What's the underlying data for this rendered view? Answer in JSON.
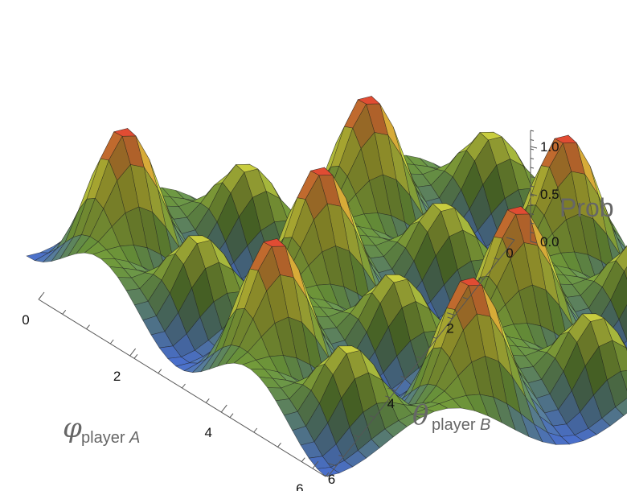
{
  "chart_data": {
    "type": "surface3d",
    "function": "sin(2*phi)^2 * sin(2*theta)^2 (approximate periodic peak structure)",
    "x_axis": {
      "label_symbol": "φ",
      "label_sub_main": "player ",
      "label_sub_italic": "A",
      "range": [
        0,
        6.283
      ],
      "ticks": [
        0,
        2,
        4,
        6
      ],
      "tick_labels": [
        "0",
        "2",
        "4",
        "6"
      ]
    },
    "y_axis": {
      "label_symbol": "θ",
      "label_sub_main": "player ",
      "label_sub_italic": "B",
      "range": [
        0,
        6.283
      ],
      "ticks": [
        0,
        2,
        4,
        6
      ],
      "tick_labels": [
        "0",
        "2",
        "4",
        "6"
      ]
    },
    "z_axis": {
      "label": "Prob",
      "range": [
        0,
        1.0
      ],
      "ticks": [
        0.0,
        0.5,
        1.0
      ],
      "tick_labels": [
        "0.0",
        "0.5",
        "1.0"
      ]
    },
    "colors": {
      "low": "#4a6fd0",
      "mid": "#6f9a3c",
      "high_mid": "#e8e040",
      "high": "#e03030"
    }
  }
}
